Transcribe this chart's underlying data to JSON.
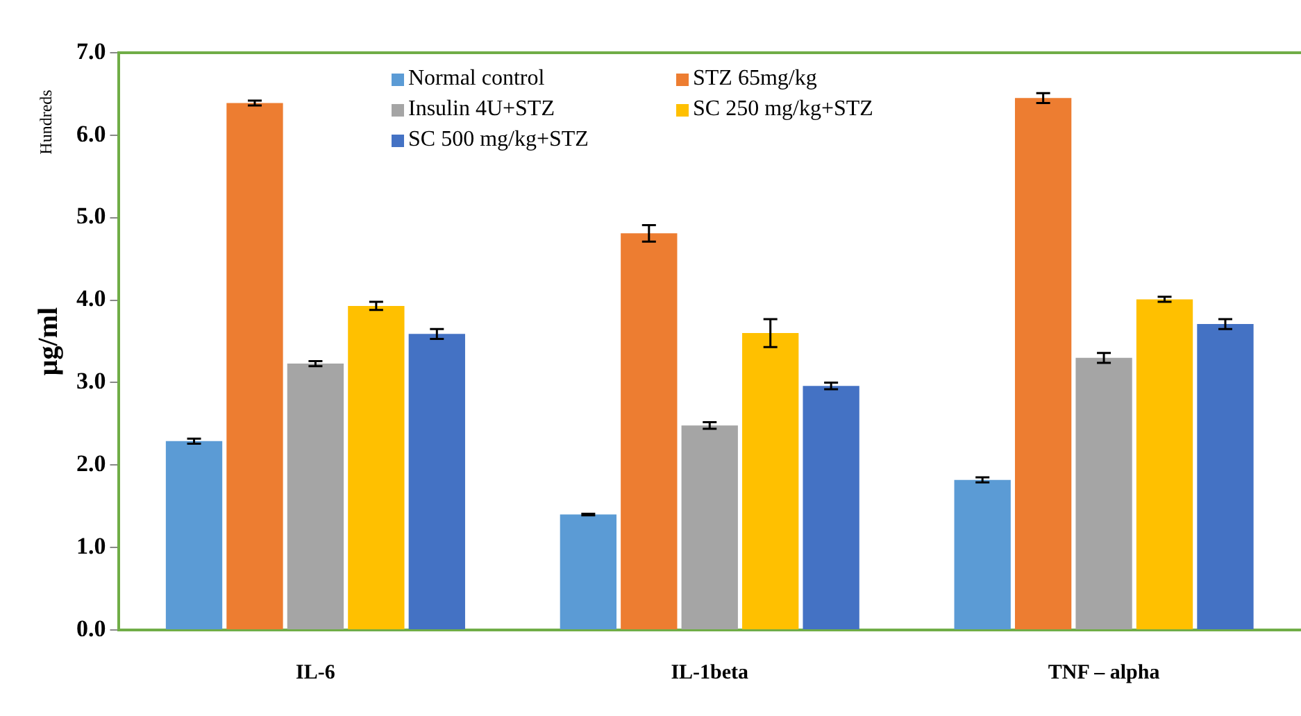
{
  "chart_data": {
    "type": "bar",
    "ylabel": "μg/ml",
    "annotations": [
      "Hundreds"
    ],
    "categories": [
      "IL-6",
      "IL-1beta",
      "TNF – alpha"
    ],
    "series": [
      {
        "name": "Normal control",
        "color": "#5b9bd5",
        "values": [
          2.29,
          1.4,
          1.82
        ],
        "errors": [
          0.03,
          0.01,
          0.03
        ]
      },
      {
        "name": "STZ 65mg/kg",
        "color": "#ed7d31",
        "values": [
          6.39,
          4.81,
          6.45
        ],
        "errors": [
          0.03,
          0.1,
          0.06
        ]
      },
      {
        "name": "Insulin 4U+STZ",
        "color": "#a5a5a5",
        "values": [
          3.23,
          2.48,
          3.3
        ],
        "errors": [
          0.03,
          0.04,
          0.06
        ]
      },
      {
        "name": "SC 250 mg/kg+STZ",
        "color": "#ffc000",
        "values": [
          3.93,
          3.6,
          4.01
        ],
        "errors": [
          0.05,
          0.17,
          0.03
        ]
      },
      {
        "name": "SC 500 mg/kg+STZ",
        "color": "#4472c4",
        "values": [
          3.59,
          2.96,
          3.71
        ],
        "errors": [
          0.06,
          0.04,
          0.06
        ]
      }
    ],
    "ylim": [
      0,
      7
    ],
    "yticks": [
      {
        "value": 0,
        "label": "0.0"
      },
      {
        "value": 1,
        "label": "1.0"
      },
      {
        "value": 2,
        "label": "2.0"
      },
      {
        "value": 3,
        "label": "3.0"
      },
      {
        "value": 4,
        "label": "4.0"
      },
      {
        "value": 5,
        "label": "5.0"
      },
      {
        "value": 6,
        "label": "6.0"
      },
      {
        "value": 7,
        "label": "7.0"
      }
    ],
    "grid": false,
    "legend": "top"
  }
}
